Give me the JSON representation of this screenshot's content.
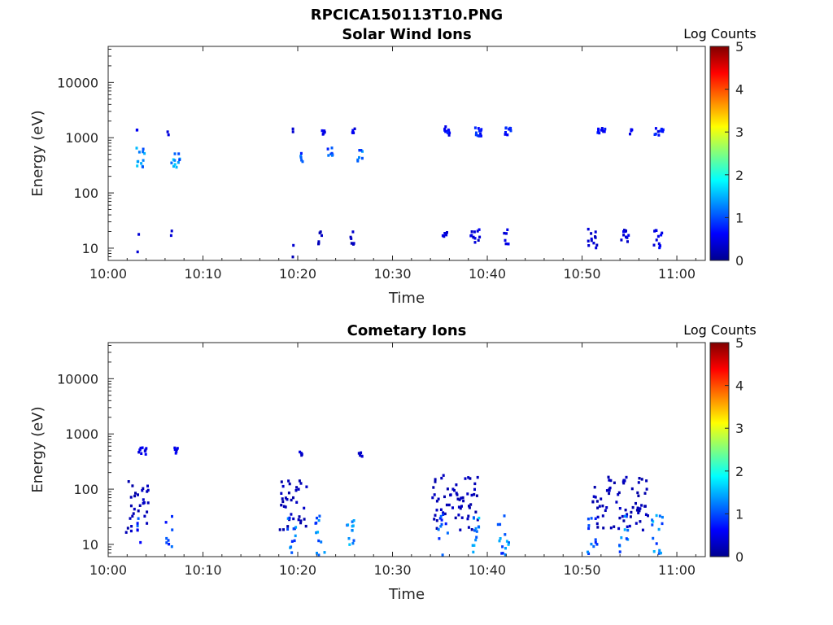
{
  "figure": {
    "title": "RPCICA150113T10.PNG"
  },
  "chart_data": [
    {
      "type": "heatmap",
      "title": "Solar Wind Ions",
      "xlabel": "Time",
      "ylabel": "Energy (eV)",
      "x_ticks": [
        "10:00",
        "10:10",
        "10:20",
        "10:30",
        "10:40",
        "10:50",
        "11:00"
      ],
      "xlim_minutes": [
        0,
        63
      ],
      "y_ticks": [
        "10",
        "100",
        "1000",
        "10000"
      ],
      "y_scale": "log",
      "ylim": [
        6,
        45000
      ],
      "colorbar": {
        "label": "Log Counts",
        "range": [
          0,
          5
        ],
        "ticks": [
          "0",
          "1",
          "2",
          "3",
          "4",
          "5"
        ]
      },
      "clusters": [
        {
          "t": 3.2,
          "e": 450,
          "dt": 1.0,
          "w": 0.24,
          "lvl": 1.5
        },
        {
          "t": 7.0,
          "e": 450,
          "dt": 0.9,
          "w": 0.2,
          "lvl": 1.5
        },
        {
          "t": 20.2,
          "e": 480,
          "dt": 0.4,
          "w": 0.15,
          "lvl": 1.2
        },
        {
          "t": 23.3,
          "e": 480,
          "dt": 0.6,
          "w": 0.16,
          "lvl": 1.2
        },
        {
          "t": 26.5,
          "e": 480,
          "dt": 0.6,
          "w": 0.16,
          "lvl": 1.2
        },
        {
          "t": 2.9,
          "e": 1400,
          "dt": 0.2,
          "w": 0.05,
          "lvl": 0.5
        },
        {
          "t": 6.2,
          "e": 1300,
          "dt": 0.2,
          "w": 0.05,
          "lvl": 0.5
        },
        {
          "t": 19.4,
          "e": 1450,
          "dt": 0.2,
          "w": 0.06,
          "lvl": 0.5
        },
        {
          "t": 22.6,
          "e": 1400,
          "dt": 0.4,
          "w": 0.06,
          "lvl": 0.5
        },
        {
          "t": 25.8,
          "e": 1450,
          "dt": 0.4,
          "w": 0.06,
          "lvl": 0.5
        },
        {
          "t": 35.6,
          "e": 1400,
          "dt": 0.9,
          "w": 0.08,
          "lvl": 0.7
        },
        {
          "t": 38.8,
          "e": 1350,
          "dt": 0.9,
          "w": 0.08,
          "lvl": 0.8
        },
        {
          "t": 42.0,
          "e": 1400,
          "dt": 0.8,
          "w": 0.08,
          "lvl": 0.8
        },
        {
          "t": 51.9,
          "e": 1400,
          "dt": 0.8,
          "w": 0.06,
          "lvl": 0.7
        },
        {
          "t": 55.0,
          "e": 1400,
          "dt": 0.3,
          "w": 0.06,
          "lvl": 0.7
        },
        {
          "t": 58.0,
          "e": 1400,
          "dt": 0.9,
          "w": 0.08,
          "lvl": 0.7
        },
        {
          "t": 3.0,
          "e": 13,
          "dt": 0.2,
          "w": 0.28,
          "lvl": 0.4
        },
        {
          "t": 6.6,
          "e": 20,
          "dt": 0.2,
          "w": 0.05,
          "lvl": 0.4
        },
        {
          "t": 19.4,
          "e": 11,
          "dt": 0.2,
          "w": 0.25,
          "lvl": 0.4
        },
        {
          "t": 22.3,
          "e": 16,
          "dt": 0.5,
          "w": 0.14,
          "lvl": 0.4
        },
        {
          "t": 25.6,
          "e": 17,
          "dt": 0.5,
          "w": 0.14,
          "lvl": 0.4
        },
        {
          "t": 35.4,
          "e": 19,
          "dt": 0.5,
          "w": 0.05,
          "lvl": 0.5
        },
        {
          "t": 38.6,
          "e": 17,
          "dt": 1.0,
          "w": 0.14,
          "lvl": 0.5
        },
        {
          "t": 41.9,
          "e": 16,
          "dt": 0.5,
          "w": 0.18,
          "lvl": 0.5
        },
        {
          "t": 51.0,
          "e": 16,
          "dt": 1.0,
          "w": 0.18,
          "lvl": 0.5
        },
        {
          "t": 54.4,
          "e": 17,
          "dt": 0.8,
          "w": 0.16,
          "lvl": 0.5
        },
        {
          "t": 57.8,
          "e": 16,
          "dt": 1.0,
          "w": 0.18,
          "lvl": 0.6
        }
      ]
    },
    {
      "type": "heatmap",
      "title": "Cometary Ions",
      "xlabel": "Time",
      "ylabel": "Energy (eV)",
      "x_ticks": [
        "10:00",
        "10:10",
        "10:20",
        "10:30",
        "10:40",
        "10:50",
        "11:00"
      ],
      "xlim_minutes": [
        0,
        63
      ],
      "y_ticks": [
        "10",
        "100",
        "1000",
        "10000"
      ],
      "y_scale": "log",
      "ylim": [
        6,
        45000
      ],
      "colorbar": {
        "label": "Log Counts",
        "range": [
          0,
          5
        ],
        "ticks": [
          "0",
          "1",
          "2",
          "3",
          "4",
          "5"
        ]
      },
      "clusters": [
        {
          "t": 3.5,
          "e": 520,
          "dt": 0.8,
          "w": 0.06,
          "lvl": 0.5
        },
        {
          "t": 7.0,
          "e": 520,
          "dt": 0.5,
          "w": 0.06,
          "lvl": 0.5
        },
        {
          "t": 20.2,
          "e": 480,
          "dt": 0.3,
          "w": 0.05,
          "lvl": 0.4
        },
        {
          "t": 26.5,
          "e": 470,
          "dt": 0.4,
          "w": 0.06,
          "lvl": 0.4
        },
        {
          "t": 3.0,
          "e": 55,
          "dt": 2.5,
          "w": 0.5,
          "lvl": 0.3
        },
        {
          "t": 19.5,
          "e": 60,
          "dt": 3.0,
          "w": 0.5,
          "lvl": 0.3
        },
        {
          "t": 36.5,
          "e": 60,
          "dt": 5.0,
          "w": 0.5,
          "lvl": 0.3
        },
        {
          "t": 54.0,
          "e": 60,
          "dt": 6.0,
          "w": 0.5,
          "lvl": 0.3
        },
        {
          "t": 3.2,
          "e": 15,
          "dt": 0.5,
          "w": 0.4,
          "lvl": 1.0
        },
        {
          "t": 6.3,
          "e": 14,
          "dt": 0.9,
          "w": 0.4,
          "lvl": 1.1
        },
        {
          "t": 19.2,
          "e": 14,
          "dt": 1.0,
          "w": 0.4,
          "lvl": 1.2
        },
        {
          "t": 22.2,
          "e": 14,
          "dt": 1.0,
          "w": 0.4,
          "lvl": 1.3
        },
        {
          "t": 25.4,
          "e": 14,
          "dt": 1.2,
          "w": 0.4,
          "lvl": 1.4
        },
        {
          "t": 35.2,
          "e": 15,
          "dt": 1.0,
          "w": 0.4,
          "lvl": 1.1
        },
        {
          "t": 38.6,
          "e": 15,
          "dt": 1.2,
          "w": 0.4,
          "lvl": 1.4
        },
        {
          "t": 41.6,
          "e": 15,
          "dt": 1.2,
          "w": 0.4,
          "lvl": 1.3
        },
        {
          "t": 51.0,
          "e": 15,
          "dt": 1.2,
          "w": 0.4,
          "lvl": 1.2
        },
        {
          "t": 54.2,
          "e": 15,
          "dt": 1.0,
          "w": 0.4,
          "lvl": 1.3
        },
        {
          "t": 57.8,
          "e": 15,
          "dt": 1.2,
          "w": 0.4,
          "lvl": 1.4
        }
      ]
    }
  ]
}
